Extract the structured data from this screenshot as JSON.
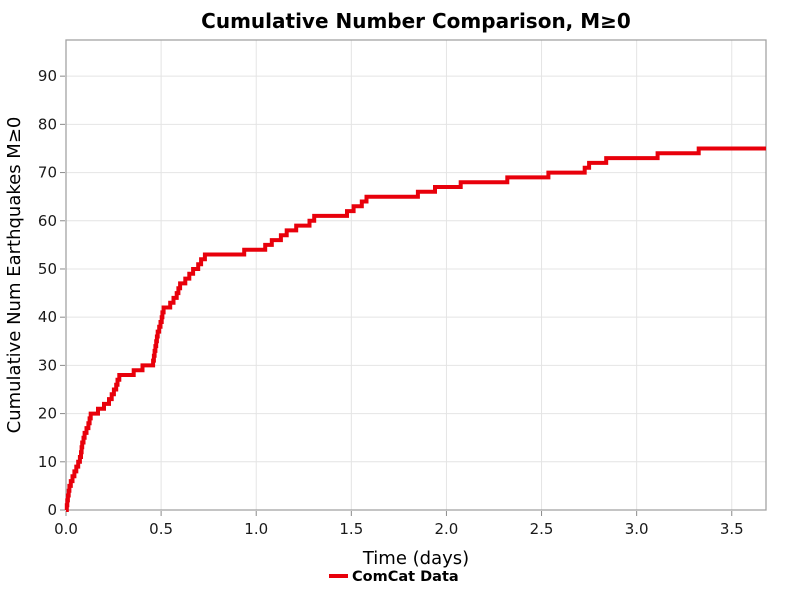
{
  "chart_data": {
    "type": "line",
    "subtype": "cumulative-step",
    "title": "Cumulative Number Comparison, M≥0",
    "xlabel": "Time (days)",
    "ylabel": "Cumulative Num Earthquakes M≥0",
    "grid": true,
    "legend_position": "lower center below axes",
    "xlim": [
      0,
      3.68
    ],
    "ylim": [
      0,
      97.5
    ],
    "xticks": [
      0.0,
      0.5,
      1.0,
      1.5,
      2.0,
      2.5,
      3.0,
      3.5
    ],
    "yticks": [
      0,
      10,
      20,
      30,
      40,
      50,
      60,
      70,
      80,
      90
    ],
    "series": [
      {
        "name": "ComCat Data",
        "color": "#e8000b",
        "line_width": 4,
        "step_mode": "post",
        "start": [
          0,
          0
        ],
        "end_time": 3.68,
        "final_value": 75,
        "points": [
          [
            0.004,
            1
          ],
          [
            0.007,
            2
          ],
          [
            0.01,
            3
          ],
          [
            0.014,
            4
          ],
          [
            0.018,
            5
          ],
          [
            0.025,
            6
          ],
          [
            0.034,
            7
          ],
          [
            0.044,
            8
          ],
          [
            0.054,
            9
          ],
          [
            0.064,
            10
          ],
          [
            0.073,
            11
          ],
          [
            0.079,
            12
          ],
          [
            0.082,
            13
          ],
          [
            0.085,
            14
          ],
          [
            0.092,
            15
          ],
          [
            0.098,
            16
          ],
          [
            0.108,
            17
          ],
          [
            0.118,
            18
          ],
          [
            0.124,
            19
          ],
          [
            0.13,
            20
          ],
          [
            0.168,
            21
          ],
          [
            0.2,
            22
          ],
          [
            0.226,
            23
          ],
          [
            0.24,
            24
          ],
          [
            0.252,
            25
          ],
          [
            0.264,
            26
          ],
          [
            0.271,
            27
          ],
          [
            0.28,
            28
          ],
          [
            0.356,
            29
          ],
          [
            0.402,
            30
          ],
          [
            0.458,
            31
          ],
          [
            0.462,
            32
          ],
          [
            0.466,
            33
          ],
          [
            0.47,
            34
          ],
          [
            0.474,
            35
          ],
          [
            0.478,
            36
          ],
          [
            0.482,
            37
          ],
          [
            0.49,
            38
          ],
          [
            0.497,
            39
          ],
          [
            0.503,
            40
          ],
          [
            0.507,
            41
          ],
          [
            0.513,
            42
          ],
          [
            0.548,
            43
          ],
          [
            0.565,
            44
          ],
          [
            0.582,
            45
          ],
          [
            0.591,
            46
          ],
          [
            0.6,
            47
          ],
          [
            0.627,
            48
          ],
          [
            0.648,
            49
          ],
          [
            0.668,
            50
          ],
          [
            0.695,
            51
          ],
          [
            0.71,
            52
          ],
          [
            0.73,
            53
          ],
          [
            0.937,
            54
          ],
          [
            1.047,
            55
          ],
          [
            1.082,
            56
          ],
          [
            1.13,
            57
          ],
          [
            1.16,
            58
          ],
          [
            1.21,
            59
          ],
          [
            1.28,
            60
          ],
          [
            1.305,
            61
          ],
          [
            1.477,
            62
          ],
          [
            1.512,
            63
          ],
          [
            1.555,
            64
          ],
          [
            1.58,
            65
          ],
          [
            1.85,
            66
          ],
          [
            1.94,
            67
          ],
          [
            2.075,
            68
          ],
          [
            2.32,
            69
          ],
          [
            2.536,
            70
          ],
          [
            2.727,
            71
          ],
          [
            2.75,
            72
          ],
          [
            2.84,
            73
          ],
          [
            3.11,
            74
          ],
          [
            3.326,
            75
          ]
        ]
      }
    ],
    "colors": {
      "line": "#e8000b",
      "grid": "#e4e4e4",
      "spine": "#a3a3a3",
      "tick": "#8a8a8a",
      "background": "#ffffff"
    }
  },
  "legend": {
    "items": [
      {
        "label": "ComCat Data",
        "color": "#e8000b"
      }
    ]
  }
}
